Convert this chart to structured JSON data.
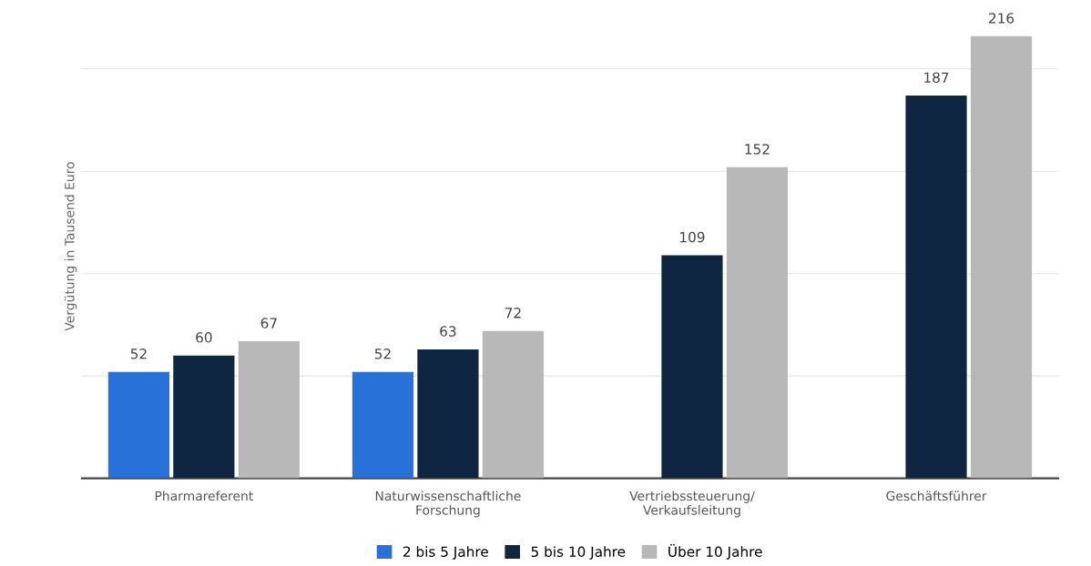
{
  "chart_data": {
    "type": "bar",
    "ylabel": "Vergütung in Tausend Euro",
    "categories": [
      "Pharmareferent",
      "Naturwissenschaftliche\nForschung",
      "Vertriebssteuerung/\nVerkaufsleitung",
      "Geschäftsführer"
    ],
    "series": [
      {
        "name": "2 bis 5 Jahre",
        "color": "#2771d9",
        "values": [
          52,
          52,
          null,
          null
        ]
      },
      {
        "name": "5 bis 10 Jahre",
        "color": "#0f2640",
        "values": [
          60,
          63,
          109,
          187
        ]
      },
      {
        "name": "Über 10 Jahre",
        "color": "#b8b8b8",
        "values": [
          67,
          72,
          152,
          216
        ]
      }
    ],
    "yticks": [
      {
        "value": 0,
        "label": null
      },
      {
        "value": 50,
        "label": null
      },
      {
        "value": 100,
        "label": null
      },
      {
        "value": 150,
        "label": null
      },
      {
        "value": 200,
        "label": null
      }
    ],
    "tick_labels": "x",
    "grid": "y",
    "data_labels": true,
    "legend": "bottom"
  }
}
